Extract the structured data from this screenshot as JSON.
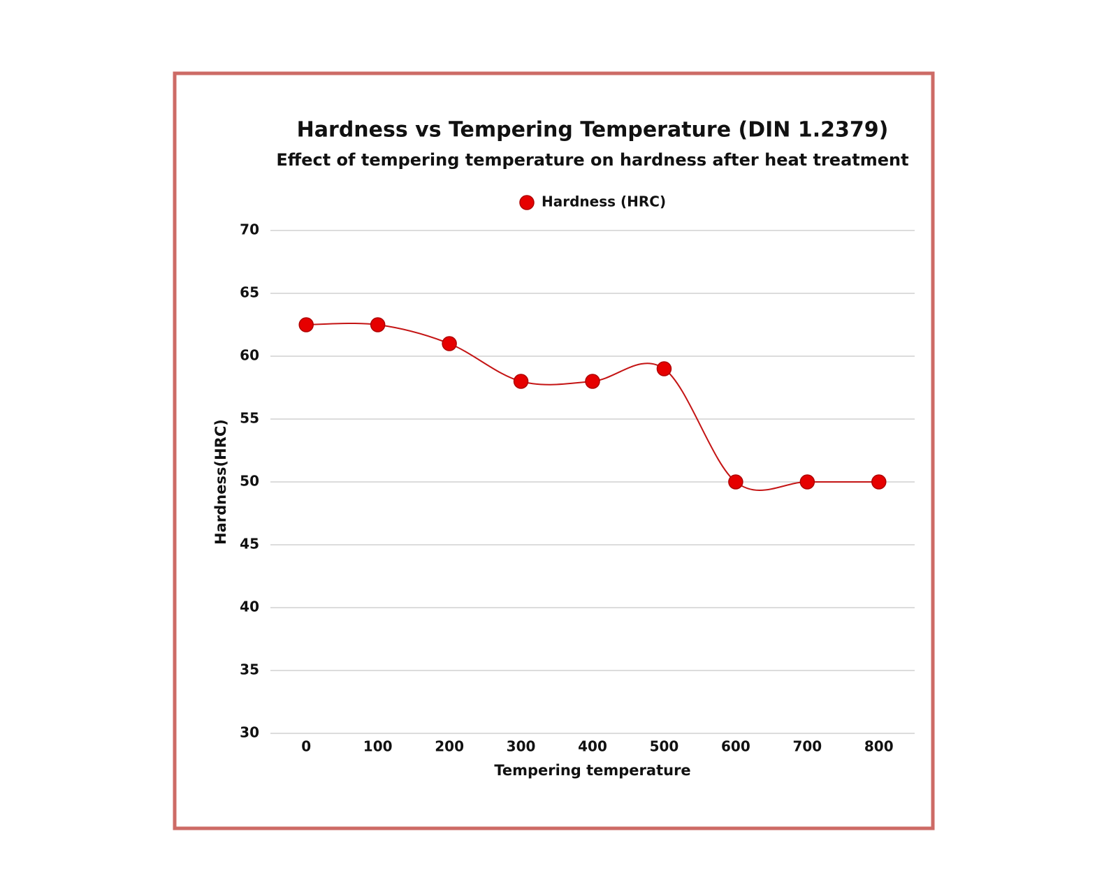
{
  "chart_data": {
    "type": "line",
    "title": "Hardness vs Tempering Temperature (DIN 1.2379)",
    "subtitle": "Effect of tempering temperature on hardness after heat treatment",
    "x_label": "Tempering temperature",
    "y_label": "Hardness(HRC)",
    "x": [
      0,
      100,
      200,
      300,
      400,
      500,
      600,
      700,
      800
    ],
    "series": [
      {
        "name": "Hardness (HRC)",
        "color": "#e60000",
        "values": [
          62.5,
          62.5,
          61,
          58,
          58,
          59,
          50,
          50,
          50
        ]
      }
    ],
    "xlim": [
      -50,
      850
    ],
    "xticks": [
      0,
      100,
      200,
      300,
      400,
      500,
      600,
      700,
      800
    ],
    "ylim": [
      30,
      70
    ],
    "yticks": [
      30,
      35,
      40,
      45,
      50,
      55,
      60,
      65,
      70
    ],
    "grid": true,
    "legend": "top",
    "smooth": true
  }
}
